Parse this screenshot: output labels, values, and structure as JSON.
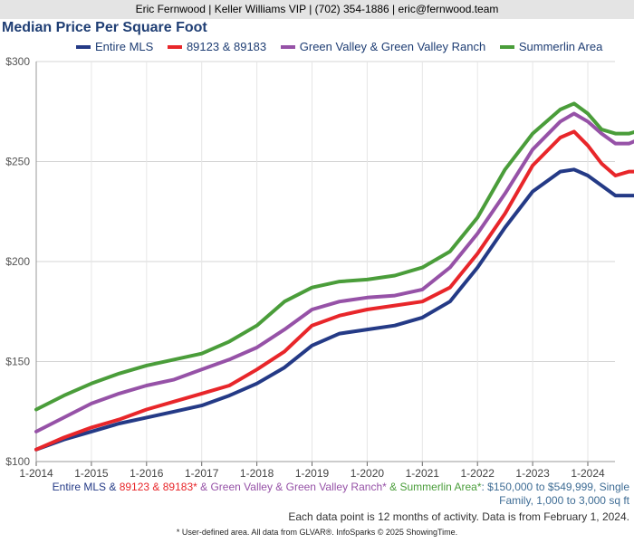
{
  "header": {
    "contact": "Eric Fernwood | Keller Williams VIP | (702) 354-1886 | eric@fernwood.team"
  },
  "colors": {
    "entire": "#243a86",
    "zip": "#e8262a",
    "gv": "#9652a7",
    "summerlin": "#4a9d3a"
  },
  "criteria": {
    "s1": "Entire MLS",
    "amp1": " & ",
    "s2": "89123 & 89183*",
    "amp2": " & ",
    "s3": "Green Valley & Green Valley Ranch*",
    "amp3": " & ",
    "s4": "Summerlin Area*",
    "tail1": ": $150,000 to $549,999, Single",
    "tail2": "Family, 1,000 to 3,000 sq ft"
  },
  "notes": {
    "activity": "Each data point is 12 months of activity. Data is from February 1, 2024.",
    "footer": "* User-defined area. All data from GLVAR®. InfoSparks © 2025 ShowingTime."
  },
  "chart_data": {
    "type": "line",
    "title": "Median Price Per Square Foot",
    "ylim": [
      100,
      300
    ],
    "yticks": [
      "$100",
      "$150",
      "$200",
      "$250",
      "$300"
    ],
    "xlabels": [
      "1-2014",
      "1-2015",
      "1-2016",
      "1-2017",
      "1-2018",
      "1-2019",
      "1-2020",
      "1-2021",
      "1-2022",
      "1-2023",
      "1-2024"
    ],
    "grid": true,
    "legend_position": "top",
    "series": [
      {
        "name": "Entire MLS",
        "color": "#243a86",
        "points": [
          [
            0,
            106
          ],
          [
            6,
            111
          ],
          [
            12,
            115
          ],
          [
            18,
            119
          ],
          [
            24,
            122
          ],
          [
            30,
            125
          ],
          [
            36,
            128
          ],
          [
            42,
            133
          ],
          [
            48,
            139
          ],
          [
            54,
            147
          ],
          [
            60,
            158
          ],
          [
            66,
            164
          ],
          [
            72,
            166
          ],
          [
            78,
            168
          ],
          [
            84,
            172
          ],
          [
            90,
            180
          ],
          [
            96,
            197
          ],
          [
            102,
            217
          ],
          [
            108,
            235
          ],
          [
            114,
            245
          ],
          [
            117,
            246
          ],
          [
            120,
            243
          ],
          [
            123,
            238
          ],
          [
            126,
            233
          ],
          [
            129,
            233
          ],
          [
            132,
            233
          ],
          [
            134,
            235
          ]
        ]
      },
      {
        "name": "89123 & 89183",
        "color": "#e8262a",
        "points": [
          [
            0,
            106
          ],
          [
            6,
            112
          ],
          [
            12,
            117
          ],
          [
            18,
            121
          ],
          [
            24,
            126
          ],
          [
            30,
            130
          ],
          [
            36,
            134
          ],
          [
            42,
            138
          ],
          [
            48,
            146
          ],
          [
            54,
            155
          ],
          [
            60,
            168
          ],
          [
            66,
            173
          ],
          [
            72,
            176
          ],
          [
            78,
            178
          ],
          [
            84,
            180
          ],
          [
            90,
            187
          ],
          [
            96,
            204
          ],
          [
            102,
            224
          ],
          [
            108,
            248
          ],
          [
            114,
            262
          ],
          [
            117,
            265
          ],
          [
            120,
            258
          ],
          [
            123,
            249
          ],
          [
            126,
            243
          ],
          [
            129,
            245
          ],
          [
            132,
            245
          ],
          [
            134,
            246
          ]
        ]
      },
      {
        "name": "Green Valley & Green Valley Ranch",
        "color": "#9652a7",
        "points": [
          [
            0,
            115
          ],
          [
            6,
            122
          ],
          [
            12,
            129
          ],
          [
            18,
            134
          ],
          [
            24,
            138
          ],
          [
            30,
            141
          ],
          [
            36,
            146
          ],
          [
            42,
            151
          ],
          [
            48,
            157
          ],
          [
            54,
            166
          ],
          [
            60,
            176
          ],
          [
            66,
            180
          ],
          [
            72,
            182
          ],
          [
            78,
            183
          ],
          [
            84,
            186
          ],
          [
            90,
            197
          ],
          [
            96,
            214
          ],
          [
            102,
            234
          ],
          [
            108,
            256
          ],
          [
            114,
            270
          ],
          [
            117,
            274
          ],
          [
            120,
            270
          ],
          [
            123,
            264
          ],
          [
            126,
            259
          ],
          [
            129,
            259
          ],
          [
            132,
            262
          ],
          [
            134,
            262
          ]
        ]
      },
      {
        "name": "Summerlin Area",
        "color": "#4a9d3a",
        "points": [
          [
            0,
            126
          ],
          [
            6,
            133
          ],
          [
            12,
            139
          ],
          [
            18,
            144
          ],
          [
            24,
            148
          ],
          [
            30,
            151
          ],
          [
            36,
            154
          ],
          [
            42,
            160
          ],
          [
            48,
            168
          ],
          [
            54,
            180
          ],
          [
            60,
            187
          ],
          [
            66,
            190
          ],
          [
            72,
            191
          ],
          [
            78,
            193
          ],
          [
            84,
            197
          ],
          [
            90,
            205
          ],
          [
            96,
            222
          ],
          [
            102,
            246
          ],
          [
            108,
            264
          ],
          [
            114,
            276
          ],
          [
            117,
            279
          ],
          [
            120,
            274
          ],
          [
            123,
            266
          ],
          [
            126,
            264
          ],
          [
            129,
            264
          ],
          [
            132,
            266
          ],
          [
            134,
            269
          ]
        ]
      }
    ]
  }
}
